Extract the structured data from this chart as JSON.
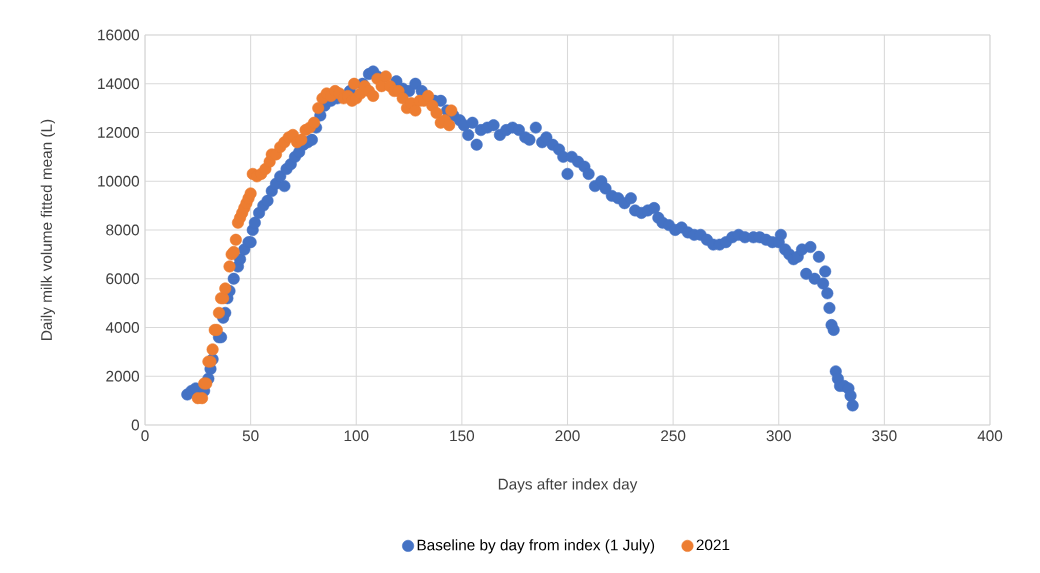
{
  "chart_data": {
    "type": "scatter",
    "xlabel": "Days after index day",
    "ylabel": "Daily milk volume fitted mean (L)",
    "xlim": [
      0,
      400
    ],
    "xticks": [
      0,
      50,
      100,
      150,
      200,
      250,
      300,
      350,
      400
    ],
    "ylim": [
      0,
      16000
    ],
    "yticks": [
      0,
      2000,
      4000,
      6000,
      8000,
      10000,
      12000,
      14000,
      16000
    ],
    "grid": true,
    "legend": "bottom",
    "marker": "circle",
    "series": [
      {
        "name": "Baseline by day from index (1 July)",
        "color": "#4472c4",
        "x": [
          20,
          22,
          24,
          26,
          28,
          30,
          31,
          32,
          33,
          35,
          36,
          37,
          38,
          39,
          40,
          42,
          44,
          45,
          47,
          49,
          50,
          51,
          52,
          54,
          56,
          58,
          60,
          62,
          64,
          66,
          67,
          69,
          71,
          73,
          75,
          77,
          79,
          81,
          83,
          85,
          88,
          91,
          97,
          103,
          106,
          108,
          110,
          119,
          122,
          125,
          128,
          131,
          134,
          137,
          140,
          143,
          146,
          149,
          151,
          153,
          155,
          157,
          159,
          162,
          165,
          168,
          171,
          174,
          177,
          180,
          182,
          185,
          188,
          190,
          193,
          196,
          198,
          200,
          202,
          205,
          208,
          210,
          213,
          216,
          218,
          221,
          224,
          227,
          230,
          232,
          235,
          238,
          241,
          243,
          245,
          248,
          251,
          254,
          257,
          260,
          263,
          266,
          269,
          272,
          275,
          278,
          281,
          284,
          288,
          291,
          294,
          297,
          300,
          301,
          303,
          305,
          307,
          309,
          311,
          313,
          315,
          317,
          319,
          321,
          322,
          323,
          324,
          325,
          326,
          327,
          328,
          329,
          331,
          333,
          334,
          335
        ],
        "values": [
          1250,
          1400,
          1500,
          null,
          1400,
          1900,
          2300,
          2700,
          null,
          3600,
          3600,
          4400,
          4600,
          5200,
          5500,
          6000,
          6500,
          6800,
          7200,
          7500,
          7500,
          8000,
          8300,
          8700,
          9000,
          9200,
          9600,
          9900,
          10200,
          9800,
          10500,
          10700,
          11000,
          11200,
          11500,
          11600,
          11700,
          12200,
          12700,
          13100,
          13300,
          13400,
          13700,
          14000,
          14400,
          14500,
          14300,
          14100,
          13800,
          13700,
          14000,
          13700,
          null,
          13300,
          13300,
          12900,
          12700,
          12500,
          12300,
          11900,
          12400,
          11500,
          12100,
          12200,
          12300,
          11900,
          12100,
          12200,
          12100,
          11800,
          11700,
          12200,
          11600,
          11800,
          11500,
          11300,
          11000,
          10300,
          11000,
          10800,
          10600,
          10300,
          9800,
          10000,
          9700,
          9400,
          9300,
          9100,
          9300,
          8800,
          8700,
          8800,
          8900,
          8500,
          8300,
          8200,
          8000,
          8100,
          7900,
          7800,
          7800,
          7600,
          7400,
          7400,
          7500,
          7700,
          7800,
          7700,
          7700,
          7700,
          7600,
          7500,
          7500,
          7800,
          7200,
          7000,
          6800,
          6900,
          7200,
          6200,
          7300,
          6000,
          6900,
          5800,
          6300,
          5400,
          4800,
          4100,
          3900,
          2200,
          1900,
          1600,
          1600,
          1500,
          1200,
          800
        ]
      },
      {
        "name": "2021",
        "color": "#ed7d31",
        "x": [
          25,
          27,
          28,
          29,
          30,
          31,
          32,
          33,
          34,
          35,
          36,
          37,
          38,
          40,
          41,
          42,
          43,
          44,
          45,
          46,
          47,
          48,
          49,
          50,
          51,
          53,
          55,
          57,
          59,
          60,
          62,
          64,
          66,
          68,
          70,
          72,
          74,
          76,
          78,
          80,
          82,
          84,
          86,
          88,
          90,
          92,
          94,
          96,
          98,
          99,
          100,
          102,
          104,
          106,
          108,
          110,
          112,
          114,
          116,
          118,
          120,
          122,
          124,
          126,
          128,
          130,
          132,
          134,
          136,
          138,
          140,
          142,
          144,
          145
        ],
        "values": [
          1100,
          1100,
          1700,
          1700,
          2600,
          2600,
          3100,
          3900,
          3900,
          4600,
          5200,
          5200,
          5600,
          6500,
          7000,
          7100,
          7600,
          8300,
          8500,
          8700,
          8900,
          9100,
          9300,
          9500,
          10300,
          10200,
          10300,
          10500,
          10800,
          11100,
          11100,
          11400,
          11600,
          11800,
          11900,
          11600,
          11700,
          12100,
          12200,
          12400,
          13000,
          13400,
          13600,
          13500,
          13700,
          13600,
          13400,
          13500,
          13300,
          14000,
          13400,
          13600,
          13900,
          13700,
          13500,
          14200,
          13900,
          14300,
          13900,
          13700,
          13700,
          13400,
          13000,
          13200,
          12900,
          13300,
          13300,
          13500,
          13100,
          12800,
          12400,
          12500,
          12300,
          12900
        ]
      }
    ]
  }
}
